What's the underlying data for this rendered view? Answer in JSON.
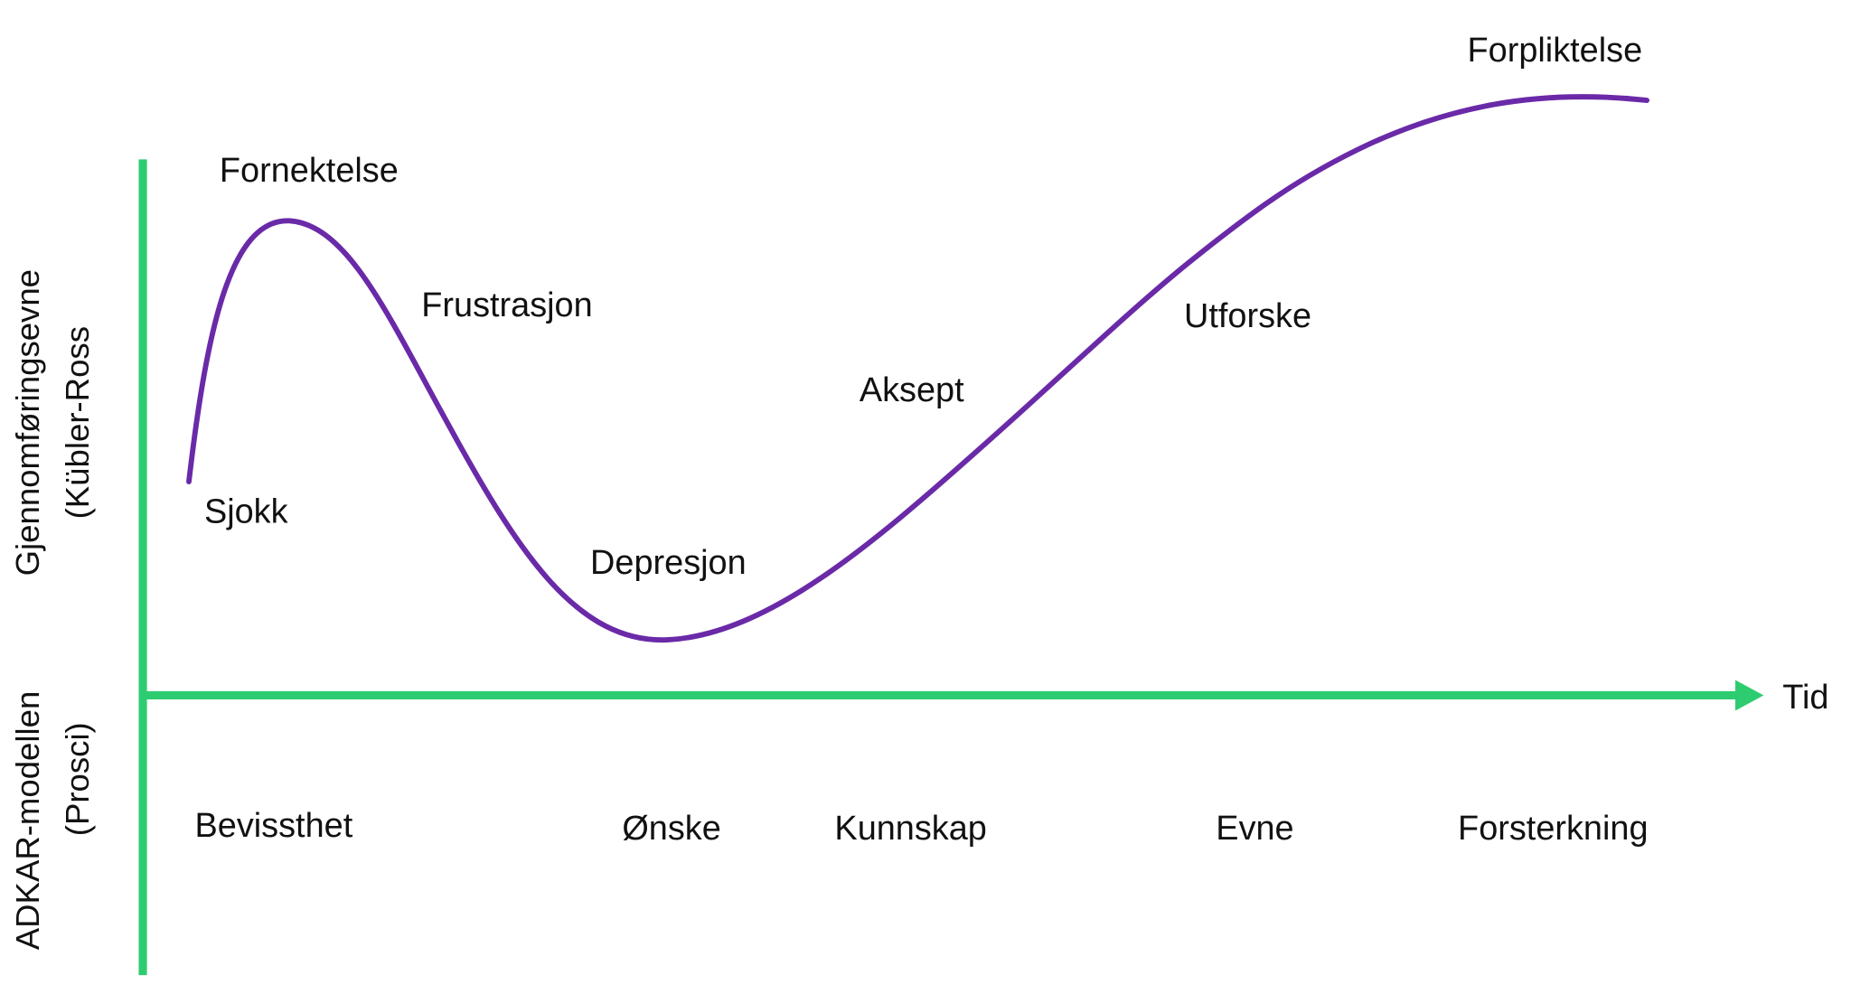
{
  "colors": {
    "axis": "#2ecc71",
    "curve": "#6a2aa8",
    "text": "#111111"
  },
  "axes": {
    "x_label": "Tid",
    "y_upper_label_line1": "Gjennomføringsevne",
    "y_upper_label_line2": "(Kübler-Ross",
    "y_lower_label_line1": "ADKAR-modellen",
    "y_lower_label_line2": "(Prosci)"
  },
  "curve_stages": [
    "Sjokk",
    "Fornektelse",
    "Frustrasjon",
    "Depresjon",
    "Aksept",
    "Utforske",
    "Forpliktelse"
  ],
  "adkar_stages": [
    "Bevissthet",
    "Ønske",
    "Kunnskap",
    "Evne",
    "Forsterkning"
  ]
}
